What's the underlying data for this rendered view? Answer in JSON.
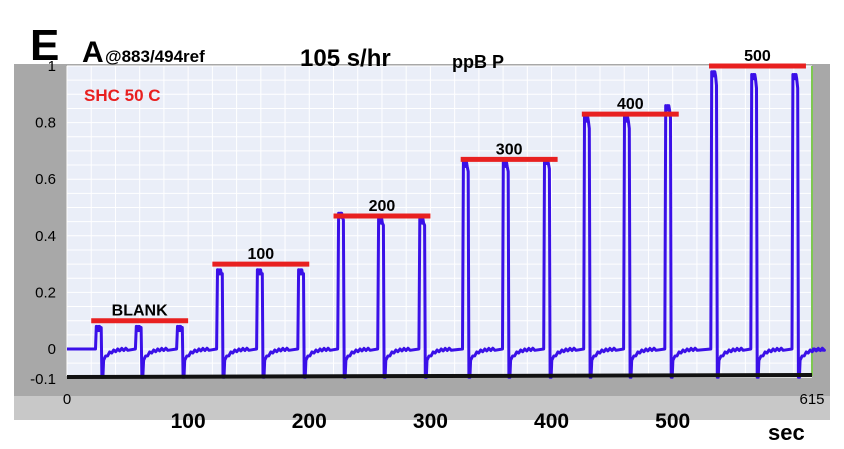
{
  "panel_letter": "E",
  "header": {
    "quantity_big": "A",
    "quantity_small": "@883/494ref",
    "rate": "105 s/hr",
    "units": "ppB P",
    "condition": "SHC 50 C"
  },
  "colors": {
    "trace": "#3a10e8",
    "level_bar": "#e82020",
    "condition_text": "#e82020",
    "plot_bg": "#eaeef8",
    "frame_gray": "#a8a8a8",
    "bottom_strip": "#c8c8c8"
  },
  "chart_data": {
    "type": "line",
    "title": "",
    "xlabel": "sec",
    "ylabel": "",
    "xlim": [
      0,
      615
    ],
    "ylim": [
      -0.1,
      1.0
    ],
    "x_ticks_inner": [
      "0",
      "615"
    ],
    "x_ticks_outer": [
      "100",
      "200",
      "300",
      "400",
      "500"
    ],
    "y_ticks": [
      "0",
      "0.2",
      "0.4",
      "0.6",
      "0.8",
      "1"
    ],
    "y_tick_bottom": "-0.1",
    "grid": true,
    "baseline": 0.0,
    "levels": [
      {
        "label": "BLANK",
        "value": 0.1,
        "x_start": 20,
        "x_end": 100,
        "peaks": [
          25,
          58,
          92
        ]
      },
      {
        "label": "100",
        "value": 0.3,
        "x_start": 120,
        "x_end": 200,
        "peaks": [
          125,
          158,
          192
        ]
      },
      {
        "label": "200",
        "value": 0.47,
        "x_start": 220,
        "x_end": 300,
        "peaks": [
          225,
          258,
          292
        ]
      },
      {
        "label": "300",
        "value": 0.67,
        "x_start": 325,
        "x_end": 405,
        "peaks": [
          328,
          361,
          395
        ]
      },
      {
        "label": "400",
        "value": 0.83,
        "x_start": 425,
        "x_end": 505,
        "peaks": [
          428,
          461,
          495
        ]
      },
      {
        "label": "500",
        "value": 1.0,
        "x_start": 530,
        "x_end": 610,
        "peaks": [
          533,
          566,
          600
        ]
      }
    ],
    "peak_heights": [
      [
        0.08,
        0.08,
        0.08
      ],
      [
        0.28,
        0.28,
        0.28
      ],
      [
        0.48,
        0.46,
        0.46
      ],
      [
        0.66,
        0.66,
        0.67
      ],
      [
        0.82,
        0.82,
        0.86
      ],
      [
        0.98,
        0.97,
        0.97
      ]
    ]
  }
}
